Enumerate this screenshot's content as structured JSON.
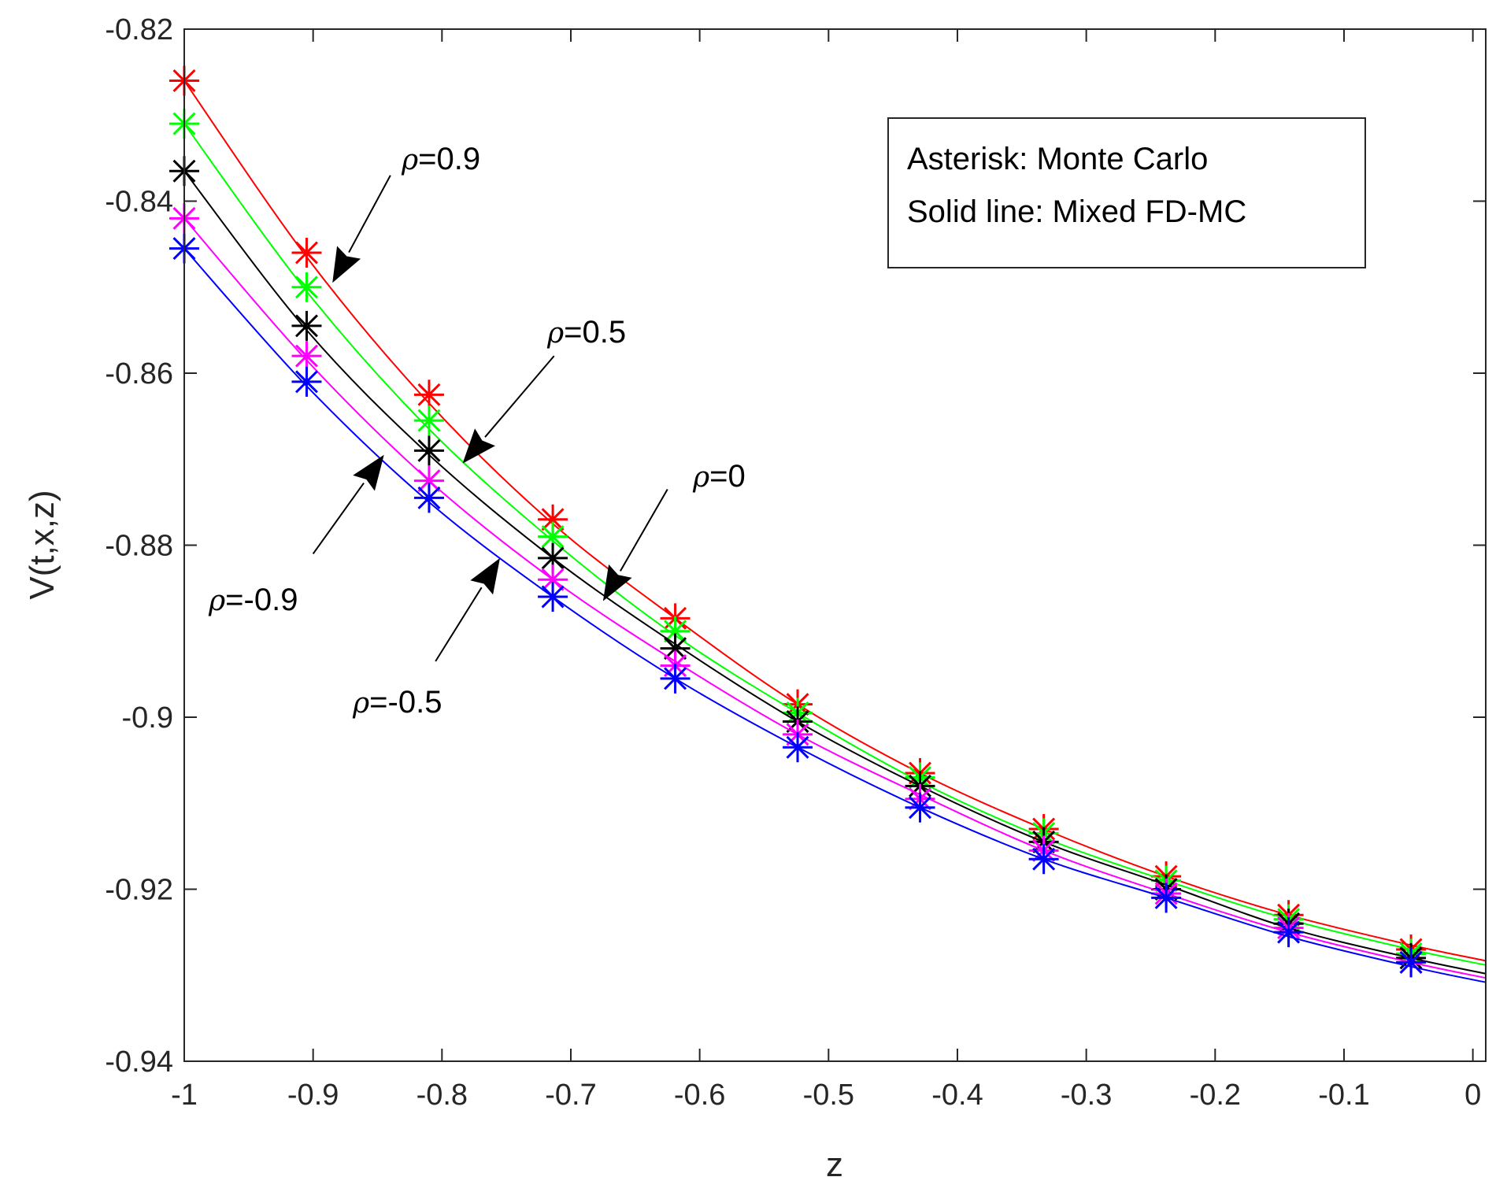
{
  "chart_data": {
    "type": "line",
    "title": "",
    "xlabel": "z",
    "ylabel": "V(t,x,z)",
    "xlim": [
      -1,
      0.01
    ],
    "ylim": [
      -0.94,
      -0.82
    ],
    "xticks": [
      -1,
      -0.9,
      -0.8,
      -0.7,
      -0.6,
      -0.5,
      -0.4,
      -0.3,
      -0.2,
      -0.1,
      0
    ],
    "xtick_labels": [
      "-1",
      "-0.9",
      "-0.8",
      "-0.7",
      "-0.6",
      "-0.5",
      "-0.4",
      "-0.3",
      "-0.2",
      "-0.1",
      "0"
    ],
    "yticks": [
      -0.82,
      -0.84,
      -0.86,
      -0.88,
      -0.9,
      -0.92,
      -0.94
    ],
    "ytick_labels": [
      "-0.82",
      "-0.84",
      "-0.86",
      "-0.88",
      "-0.9",
      "-0.92",
      "-0.94"
    ],
    "grid": false,
    "legend": {
      "position": "top-right",
      "lines": [
        "Asterisk: Monte Carlo",
        "Solid line: Mixed FD-MC"
      ]
    },
    "x": [
      -1.0,
      -0.905,
      -0.81,
      -0.714,
      -0.619,
      -0.524,
      -0.429,
      -0.333,
      -0.238,
      -0.143,
      -0.048
    ],
    "series": [
      {
        "name": "ρ=0.9",
        "color": "#ff0000",
        "mc": [
          -0.826,
          -0.846,
          -0.8625,
          -0.877,
          -0.8885,
          -0.8985,
          -0.9065,
          -0.913,
          -0.9185,
          -0.923,
          -0.927
        ],
        "fd": [
          -0.826,
          -0.8465,
          -0.8635,
          -0.8775,
          -0.8885,
          -0.8985,
          -0.9065,
          -0.913,
          -0.9185,
          -0.923,
          -0.9265
        ]
      },
      {
        "name": "ρ=0.5",
        "color": "#00ff00",
        "mc": [
          -0.831,
          -0.85,
          -0.8655,
          -0.879,
          -0.89,
          -0.8995,
          -0.907,
          -0.9135,
          -0.919,
          -0.9235,
          -0.9275
        ],
        "fd": [
          -0.831,
          -0.8505,
          -0.8665,
          -0.8795,
          -0.8905,
          -0.8995,
          -0.9075,
          -0.914,
          -0.919,
          -0.9235,
          -0.927
        ]
      },
      {
        "name": "ρ=0",
        "color": "#000000",
        "mc": [
          -0.8365,
          -0.8545,
          -0.869,
          -0.8815,
          -0.892,
          -0.9005,
          -0.908,
          -0.9145,
          -0.92,
          -0.924,
          -0.928
        ],
        "fd": [
          -0.8365,
          -0.855,
          -0.8695,
          -0.8815,
          -0.8915,
          -0.9005,
          -0.908,
          -0.9145,
          -0.9195,
          -0.9245,
          -0.928
        ]
      },
      {
        "name": "ρ=-0.5",
        "color": "#ff00ff",
        "mc": [
          -0.842,
          -0.858,
          -0.8725,
          -0.884,
          -0.894,
          -0.902,
          -0.9095,
          -0.9155,
          -0.9205,
          -0.9245,
          -0.9285
        ],
        "fd": [
          -0.842,
          -0.8585,
          -0.8725,
          -0.884,
          -0.8935,
          -0.902,
          -0.909,
          -0.9155,
          -0.9205,
          -0.925,
          -0.9285
        ]
      },
      {
        "name": "ρ=-0.9",
        "color": "#0000ff",
        "mc": [
          -0.8455,
          -0.861,
          -0.8745,
          -0.886,
          -0.8955,
          -0.9035,
          -0.9105,
          -0.9165,
          -0.921,
          -0.925,
          -0.9285
        ],
        "fd": [
          -0.8455,
          -0.8615,
          -0.875,
          -0.886,
          -0.8955,
          -0.9035,
          -0.9105,
          -0.9165,
          -0.921,
          -0.9255,
          -0.929
        ]
      }
    ],
    "annotations": [
      {
        "prefix": "ρ",
        "text": "=0.9",
        "from": [
          -0.84,
          -0.837
        ],
        "to": [
          -0.885,
          -0.8495
        ]
      },
      {
        "prefix": "ρ",
        "text": "=0.5",
        "from": [
          -0.713,
          -0.858
        ],
        "to": [
          -0.784,
          -0.8705
        ]
      },
      {
        "prefix": "ρ",
        "text": "=0",
        "from": [
          -0.625,
          -0.8735
        ],
        "to": [
          -0.675,
          -0.8865
        ]
      },
      {
        "prefix": "ρ",
        "text": "=-0.9",
        "from": [
          -0.9,
          -0.881
        ],
        "to": [
          -0.845,
          -0.8695
        ]
      },
      {
        "prefix": "ρ",
        "text": "=-0.5",
        "from": [
          -0.805,
          -0.8935
        ],
        "to": [
          -0.755,
          -0.8815
        ]
      }
    ]
  }
}
